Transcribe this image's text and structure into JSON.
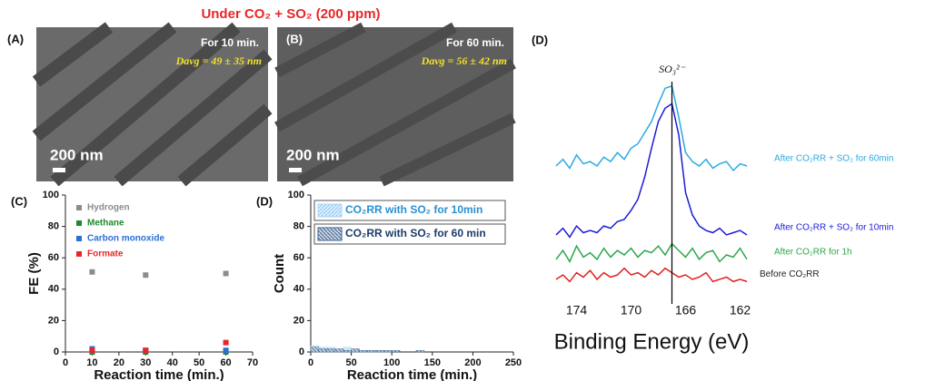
{
  "title": "Under CO₂ + SO₂ (200 ppm)",
  "images": [
    {
      "label": "(A)",
      "time": "For 10 min.",
      "size": "Davg = 49 ± 35 nm",
      "scale": "200 nm"
    },
    {
      "label": "(B)",
      "time": "For 60 min.",
      "size": "Davg = 56 ± 42 nm",
      "scale": "200 nm"
    }
  ],
  "chart_data": [
    {
      "type": "scatter",
      "label": "(C)",
      "xlabel": "Reaction time (min.)",
      "ylabel": "FE (%)",
      "x": [
        10,
        30,
        60
      ],
      "xlim": [
        0,
        70
      ],
      "xticks": [
        0,
        10,
        20,
        30,
        40,
        50,
        60,
        70
      ],
      "ylim": [
        0,
        100
      ],
      "yticks": [
        0,
        20,
        40,
        60,
        80,
        100
      ],
      "series": [
        {
          "name": "Hydrogen",
          "color": "#8c8c8c",
          "values": [
            51,
            49,
            50
          ]
        },
        {
          "name": "Methane",
          "color": "#1e8a2e",
          "values": [
            0,
            0,
            0
          ]
        },
        {
          "name": "Carbon monoxide",
          "color": "#2b6fd6",
          "values": [
            2,
            1,
            1
          ]
        },
        {
          "name": "Formate",
          "color": "#e8262a",
          "values": [
            1,
            1,
            6
          ]
        }
      ]
    },
    {
      "type": "histogram",
      "label": "(D)",
      "xlabel": "Reaction time (min.)",
      "ylabel": "Count",
      "bins": [
        0,
        10,
        20,
        30,
        40,
        50,
        60,
        70,
        80,
        90,
        100,
        110,
        120,
        130,
        140,
        150,
        160,
        170,
        180,
        190,
        200
      ],
      "xlim": [
        0,
        250
      ],
      "xticks": [
        0,
        50,
        100,
        150,
        200,
        250
      ],
      "ylim": [
        0,
        100
      ],
      "yticks": [
        0,
        20,
        40,
        60,
        80,
        100
      ],
      "series": [
        {
          "name": "CO₂RR with SO₂ for 10min",
          "color": "#a9d6f5",
          "values": [
            4,
            3,
            3,
            2,
            3,
            2,
            1,
            1,
            1,
            1,
            0,
            0,
            0,
            0,
            0,
            0,
            0,
            0,
            0,
            0
          ]
        },
        {
          "name": "CO₂RR with SO₂ for 60 min",
          "color": "#3d628f",
          "values": [
            3,
            2,
            2,
            2,
            1,
            2,
            1,
            1,
            1,
            1,
            1,
            0,
            0,
            1,
            0,
            0,
            0,
            0,
            0,
            0
          ]
        }
      ]
    },
    {
      "type": "line",
      "label": "(D)",
      "xlabel": "Binding Energy (eV)",
      "annotation": "SO₃²⁻",
      "marker_x": 167,
      "x": [
        175.5,
        175,
        174.5,
        174,
        173.5,
        173,
        172.5,
        172,
        171.5,
        171,
        170.5,
        170,
        169.5,
        169,
        168.5,
        168,
        167.5,
        167,
        166.5,
        166,
        165.5,
        165,
        164.5,
        164,
        163.5,
        163,
        162.5,
        162,
        161.5
      ],
      "xlim": [
        175.5,
        161.5
      ],
      "xticks": [
        174,
        170,
        166,
        162
      ],
      "ylim": [
        0,
        100
      ],
      "series": [
        {
          "name": "After CO₂RR + SO₂ for 60min",
          "color": "#2aaae2",
          "values": [
            60,
            63,
            59,
            65,
            61,
            62,
            60,
            64,
            62,
            66,
            63,
            68,
            70,
            75,
            80,
            88,
            95,
            96,
            82,
            66,
            62,
            60,
            63,
            59,
            61,
            62,
            58,
            61,
            60
          ]
        },
        {
          "name": "After CO₂RR + SO₂ for 10min",
          "color": "#1c1cd8",
          "values": [
            29,
            32,
            28,
            33,
            30,
            31,
            30,
            33,
            32,
            35,
            36,
            40,
            45,
            55,
            68,
            80,
            86,
            88,
            74,
            48,
            38,
            33,
            31,
            30,
            32,
            29,
            30,
            31,
            29
          ]
        },
        {
          "name": "After CO₂RR for 1h",
          "color": "#2aa84a",
          "values": [
            18,
            22,
            17,
            24,
            19,
            21,
            18,
            23,
            19,
            22,
            20,
            23,
            19,
            22,
            21,
            24,
            20,
            25,
            22,
            19,
            23,
            18,
            21,
            22,
            17,
            20,
            19,
            23,
            18
          ]
        },
        {
          "name": "Before CO₂RR",
          "color": "#e02020",
          "values": [
            9,
            11,
            8,
            12,
            10,
            13,
            9,
            12,
            10,
            11,
            14,
            11,
            12,
            10,
            13,
            11,
            14,
            12,
            10,
            11,
            9,
            10,
            12,
            8,
            9,
            10,
            8,
            9,
            8
          ]
        }
      ]
    }
  ]
}
